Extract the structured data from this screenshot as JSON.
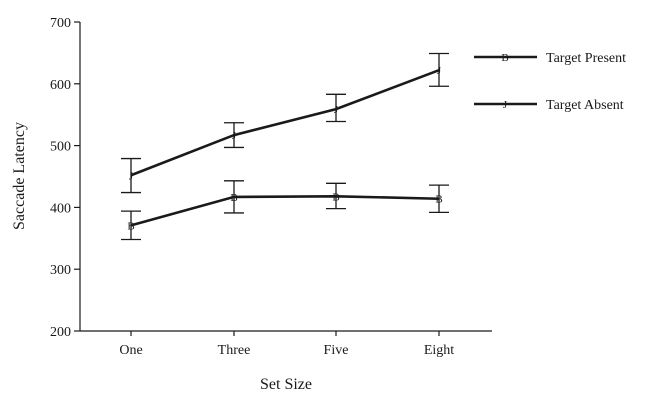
{
  "chart_data": {
    "type": "line",
    "categories": [
      "One",
      "Three",
      "Five",
      "Eight"
    ],
    "xlabel": "Set Size",
    "ylabel": "Saccade Latency",
    "ylim": [
      200,
      700
    ],
    "yticks": [
      "200",
      "300",
      "400",
      "500",
      "600",
      "700"
    ],
    "grid": false,
    "legend_position": "top-right",
    "series": [
      {
        "name": "Target Present",
        "marker": "B",
        "values": [
          371,
          417,
          418,
          414
        ],
        "err_low": [
          348,
          391,
          398,
          392
        ],
        "err_high": [
          394,
          443,
          439,
          436
        ]
      },
      {
        "name": "Target Absent",
        "marker": "J",
        "values": [
          452,
          517,
          559,
          622
        ],
        "err_low": [
          424,
          497,
          539,
          596
        ],
        "err_high": [
          479,
          537,
          583,
          649
        ]
      }
    ]
  }
}
